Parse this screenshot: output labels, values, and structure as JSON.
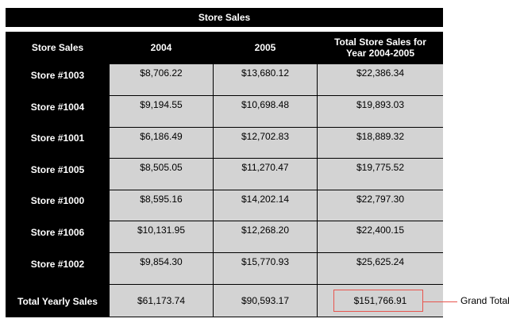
{
  "report": {
    "title": "Store Sales",
    "columns": [
      "Store Sales",
      "2004",
      "2005",
      "Total Store Sales for\nYear 2004-2005"
    ],
    "rows": [
      {
        "label": "Store #1003",
        "y2004": "$8,706.22",
        "y2005": "$13,680.12",
        "total": "$22,386.34"
      },
      {
        "label": "Store #1004",
        "y2004": "$9,194.55",
        "y2005": "$10,698.48",
        "total": "$19,893.03"
      },
      {
        "label": "Store #1001",
        "y2004": "$6,186.49",
        "y2005": "$12,702.83",
        "total": "$18,889.32"
      },
      {
        "label": "Store #1005",
        "y2004": "$8,505.05",
        "y2005": "$11,270.47",
        "total": "$19,775.52"
      },
      {
        "label": "Store #1000",
        "y2004": "$8,595.16",
        "y2005": "$14,202.14",
        "total": "$22,797.30"
      },
      {
        "label": "Store #1006",
        "y2004": "$10,131.95",
        "y2005": "$12,268.20",
        "total": "$22,400.15"
      },
      {
        "label": "Store #1002",
        "y2004": "$9,854.30",
        "y2005": "$15,770.93",
        "total": "$25,625.24"
      }
    ],
    "total_row": {
      "label": "Total Yearly Sales",
      "y2004": "$61,173.74",
      "y2005": "$90,593.17",
      "total": "$151,766.91"
    }
  },
  "annotation": {
    "label": "Grand Total",
    "color": "#e8554e"
  }
}
